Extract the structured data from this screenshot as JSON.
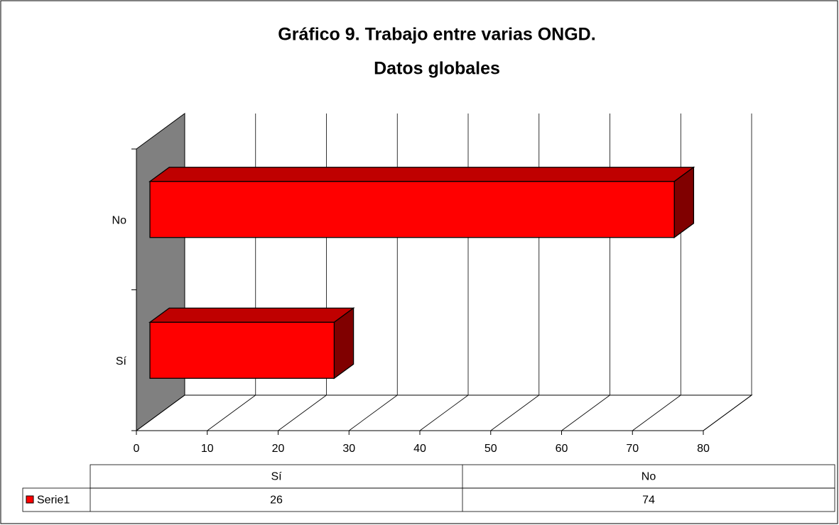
{
  "chart_data": {
    "type": "bar3d_horizontal",
    "title": [
      "Gráfico 9. Trabajo entre varias ONGD.",
      "Datos globales"
    ],
    "categories": [
      "Sí",
      "No"
    ],
    "series": [
      {
        "name": "Serie1",
        "color": "#ff0000",
        "values": [
          26,
          74
        ]
      }
    ],
    "xlim": [
      0,
      80
    ],
    "xticks": [
      0,
      10,
      20,
      30,
      40,
      50,
      60,
      70,
      80
    ],
    "grid": true,
    "data_table": true
  }
}
